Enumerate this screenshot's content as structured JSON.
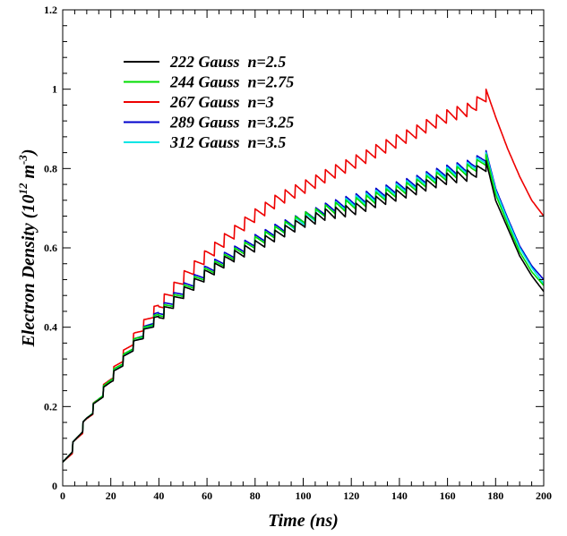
{
  "chart_data": {
    "type": "line",
    "xlabel": "Time (ns)",
    "ylabel": "Electron Density (10^12 m^-3)",
    "ylabel_parts": {
      "base": "Electron Density (10",
      "exp1": "12",
      "mid": " m",
      "exp2": "-3",
      "end": ")"
    },
    "xlim": [
      0,
      200
    ],
    "ylim": [
      0,
      1.2
    ],
    "x_ticks": [
      0,
      20,
      40,
      60,
      80,
      100,
      120,
      140,
      160,
      180,
      200
    ],
    "x_tick_labels": [
      "0",
      "20",
      "40",
      "60",
      "80",
      "100",
      "120",
      "140",
      "160",
      "180",
      "200"
    ],
    "y_ticks": [
      0,
      0.2,
      0.4,
      0.6,
      0.8,
      1.0,
      1.2
    ],
    "y_tick_labels": [
      "0",
      "0.2",
      "0.4",
      "0.6",
      "0.8",
      "1",
      "1.2"
    ],
    "grid": false,
    "legend_position": "top-left",
    "pulse_period_ns": 4.2,
    "series": [
      {
        "name": "222 Gauss  n=2.5",
        "color": "#000000",
        "x": [
          0,
          10,
          20,
          30,
          40,
          50,
          60,
          70,
          80,
          90,
          100,
          110,
          120,
          130,
          140,
          150,
          160,
          170,
          176,
          180,
          185,
          190,
          195,
          200
        ],
        "y": [
          0.06,
          0.18,
          0.28,
          0.37,
          0.44,
          0.5,
          0.55,
          0.59,
          0.62,
          0.65,
          0.68,
          0.7,
          0.71,
          0.73,
          0.75,
          0.77,
          0.79,
          0.8,
          0.82,
          0.72,
          0.65,
          0.58,
          0.53,
          0.49
        ],
        "ripple": 0.03
      },
      {
        "name": "244 Gauss  n=2.75",
        "color": "#00dd00",
        "x": [
          0,
          10,
          20,
          30,
          40,
          50,
          60,
          70,
          80,
          90,
          100,
          110,
          120,
          130,
          140,
          150,
          160,
          170,
          176,
          180,
          185,
          190,
          195,
          200
        ],
        "y": [
          0.06,
          0.18,
          0.285,
          0.375,
          0.445,
          0.505,
          0.555,
          0.595,
          0.63,
          0.66,
          0.69,
          0.71,
          0.725,
          0.74,
          0.76,
          0.78,
          0.8,
          0.815,
          0.835,
          0.735,
          0.66,
          0.59,
          0.54,
          0.505
        ],
        "ripple": 0.03
      },
      {
        "name": "267 Gauss  n=3",
        "color": "#ee0000",
        "x": [
          0,
          10,
          20,
          30,
          40,
          50,
          60,
          70,
          80,
          90,
          100,
          110,
          120,
          130,
          140,
          150,
          160,
          170,
          176,
          180,
          185,
          190,
          195,
          200
        ],
        "y": [
          0.06,
          0.18,
          0.29,
          0.39,
          0.47,
          0.54,
          0.6,
          0.65,
          0.7,
          0.74,
          0.77,
          0.8,
          0.83,
          0.86,
          0.89,
          0.92,
          0.95,
          0.97,
          1.0,
          0.93,
          0.85,
          0.78,
          0.72,
          0.68
        ],
        "ripple": 0.035
      },
      {
        "name": "289 Gauss  n=3.25",
        "color": "#0000cc",
        "x": [
          0,
          10,
          20,
          30,
          40,
          50,
          60,
          70,
          80,
          90,
          100,
          110,
          120,
          130,
          140,
          150,
          160,
          170,
          176,
          180,
          185,
          190,
          195,
          200
        ],
        "y": [
          0.06,
          0.18,
          0.285,
          0.375,
          0.45,
          0.51,
          0.56,
          0.6,
          0.635,
          0.665,
          0.69,
          0.715,
          0.735,
          0.75,
          0.77,
          0.79,
          0.81,
          0.825,
          0.845,
          0.75,
          0.675,
          0.605,
          0.555,
          0.52
        ],
        "ripple": 0.03
      },
      {
        "name": "312 Gauss  n=3.5",
        "color": "#00e5e5",
        "x": [
          0,
          10,
          20,
          30,
          40,
          50,
          60,
          70,
          80,
          90,
          100,
          110,
          120,
          130,
          140,
          150,
          160,
          170,
          176,
          180,
          185,
          190,
          195,
          200
        ],
        "y": [
          0.06,
          0.18,
          0.285,
          0.37,
          0.445,
          0.505,
          0.555,
          0.595,
          0.63,
          0.66,
          0.685,
          0.71,
          0.73,
          0.745,
          0.765,
          0.785,
          0.805,
          0.82,
          0.84,
          0.745,
          0.67,
          0.6,
          0.55,
          0.51
        ],
        "ripple": 0.03
      }
    ]
  }
}
